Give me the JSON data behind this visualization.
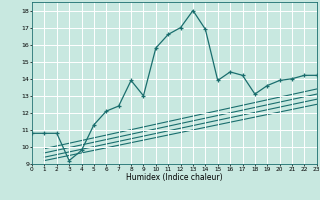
{
  "xlabel": "Humidex (Indice chaleur)",
  "xlim": [
    0,
    23
  ],
  "ylim": [
    9,
    18.5
  ],
  "xticks": [
    0,
    1,
    2,
    3,
    4,
    5,
    6,
    7,
    8,
    9,
    10,
    11,
    12,
    13,
    14,
    15,
    16,
    17,
    18,
    19,
    20,
    21,
    22,
    23
  ],
  "yticks": [
    9,
    10,
    11,
    12,
    13,
    14,
    15,
    16,
    17,
    18
  ],
  "bg_color": "#c8e8e0",
  "line_color": "#1a6e6e",
  "grid_color": "#ffffff",
  "main_curve_x": [
    0,
    1,
    2,
    3,
    4,
    5,
    6,
    7,
    8,
    9,
    10,
    11,
    12,
    13,
    14,
    15,
    16,
    17,
    18,
    19,
    20,
    21,
    22,
    23
  ],
  "main_curve_y": [
    10.8,
    10.8,
    10.8,
    9.2,
    9.8,
    11.3,
    12.1,
    12.4,
    13.9,
    13.0,
    15.8,
    16.6,
    17.0,
    18.0,
    16.9,
    13.9,
    14.4,
    14.2,
    13.1,
    13.6,
    13.9,
    14.0,
    14.2,
    14.2
  ],
  "straight_lines": [
    {
      "x": [
        1,
        23
      ],
      "y": [
        9.2,
        12.5
      ]
    },
    {
      "x": [
        1,
        23
      ],
      "y": [
        9.4,
        12.8
      ]
    },
    {
      "x": [
        1,
        23
      ],
      "y": [
        9.65,
        13.1
      ]
    },
    {
      "x": [
        1,
        23
      ],
      "y": [
        9.9,
        13.4
      ]
    }
  ]
}
